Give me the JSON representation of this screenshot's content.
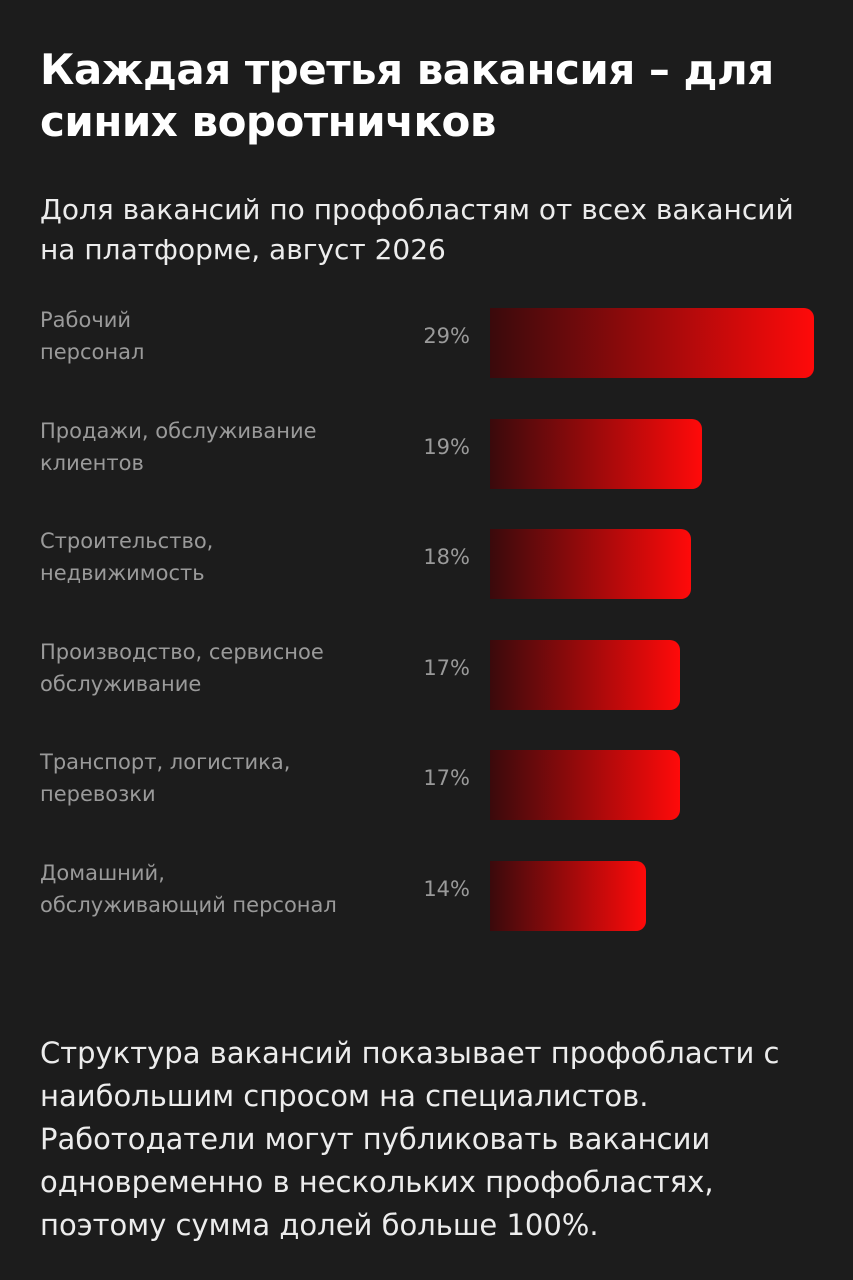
{
  "header": {
    "title": "Каждая третья вакансия – для синих воротничков",
    "subtitle": "Доля вакансий по профобластям от всех вакансий на платформе, август 2026"
  },
  "chart_data": {
    "type": "bar",
    "orientation": "horizontal",
    "categories": [
      "Рабочий\nперсонал",
      "Продажи, обслуживание\nклиентов",
      "Строительство,\nнедвижимость",
      "Производство, сервисное\nобслуживание",
      "Транспорт, логистика,\nперевозки",
      "Домашний,\nобслуживающий персонал"
    ],
    "values": [
      29,
      19,
      18,
      17,
      17,
      14
    ],
    "value_labels": [
      "29%",
      "19%",
      "18%",
      "17%",
      "17%",
      "14%"
    ],
    "xlim": [
      0,
      29
    ],
    "grid": false,
    "colors": {
      "bar_start": "#3a0a0c",
      "bar_end": "#ff0a0a"
    }
  },
  "footer": {
    "text": "Структура вакансий показывает профобласти с наибольшим спросом на специалистов. Работодатели могут публиковать вакансии одновременно в нескольких профобластях, поэтому сумма долей больше 100%."
  }
}
